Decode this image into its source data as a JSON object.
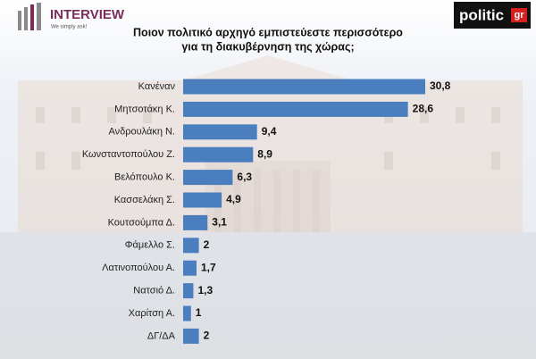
{
  "logo_left": {
    "name": "INTERVIEW",
    "tagline": "We simply ask!"
  },
  "logo_right": {
    "name": "politic",
    "suffix": "gr"
  },
  "chart_data": {
    "type": "bar",
    "orientation": "horizontal",
    "title": [
      "Ποιον πολιτικό αρχηγό εμπιστεύεστε περισσότερο",
      "για τη διακυβέρνηση της χώρας;"
    ],
    "categories": [
      "Κανέναν",
      "Μητσοτάκη Κ.",
      "Ανδρουλάκη Ν.",
      "Κωνσταντοπούλου Ζ.",
      "Βελόπουλο Κ.",
      "Κασσελάκη Σ.",
      "Κουτσούμπα Δ.",
      "Φάμελλο Σ.",
      "Λατινοπούλου Α.",
      "Νατσιό Δ.",
      "Χαρίτση Α.",
      "ΔΓ/ΔΑ"
    ],
    "values": [
      30.8,
      28.6,
      9.4,
      8.9,
      6.3,
      4.9,
      3.1,
      2,
      1.7,
      1.3,
      1,
      2
    ],
    "value_labels": [
      "30,8",
      "28,6",
      "9,4",
      "8,9",
      "6,3",
      "4,9",
      "3,1",
      "2",
      "1,7",
      "1,3",
      "1",
      "2"
    ],
    "color": "#4a7ebf"
  }
}
